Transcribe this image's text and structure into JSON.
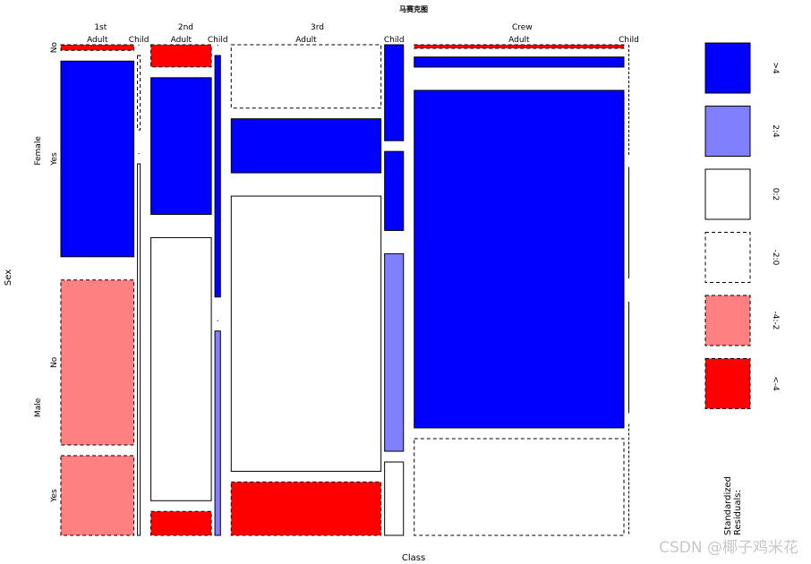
{
  "chart_data": {
    "type": "mosaic",
    "title": "马赛克图",
    "xlabel": "Class",
    "ylabel": "Sex",
    "col_levels": [
      "1st",
      "2nd",
      "3rd",
      "Crew"
    ],
    "age_levels": [
      "Adult",
      "Child"
    ],
    "sex_levels": [
      "Female",
      "Male"
    ],
    "survived_levels": [
      "No",
      "Yes"
    ],
    "cells": [
      {
        "class": "1st",
        "age": "Adult",
        "sex": "Female",
        "survived": "No",
        "count": 4,
        "fill": "#ff0000",
        "dash": true
      },
      {
        "class": "1st",
        "age": "Adult",
        "sex": "Female",
        "survived": "Yes",
        "count": 140,
        "fill": "#0000ff",
        "dash": false
      },
      {
        "class": "1st",
        "age": "Adult",
        "sex": "Male",
        "survived": "No",
        "count": 118,
        "fill": "#ff8080",
        "dash": true
      },
      {
        "class": "1st",
        "age": "Adult",
        "sex": "Male",
        "survived": "Yes",
        "count": 57,
        "fill": "#ff8080",
        "dash": true
      },
      {
        "class": "1st",
        "age": "Child",
        "sex": "Female",
        "survived": "No",
        "count": 0,
        "fill": "#ffffff",
        "dash": true
      },
      {
        "class": "1st",
        "age": "Child",
        "sex": "Female",
        "survived": "Yes",
        "count": 1,
        "fill": "#ffffff",
        "dash": true
      },
      {
        "class": "1st",
        "age": "Child",
        "sex": "Male",
        "survived": "No",
        "count": 0,
        "fill": "#ffffff",
        "dash": false
      },
      {
        "class": "1st",
        "age": "Child",
        "sex": "Male",
        "survived": "Yes",
        "count": 5,
        "fill": "#ffffff",
        "dash": false
      },
      {
        "class": "2nd",
        "age": "Adult",
        "sex": "Female",
        "survived": "No",
        "count": 13,
        "fill": "#ff0000",
        "dash": true
      },
      {
        "class": "2nd",
        "age": "Adult",
        "sex": "Female",
        "survived": "Yes",
        "count": 80,
        "fill": "#0000ff",
        "dash": false
      },
      {
        "class": "2nd",
        "age": "Adult",
        "sex": "Male",
        "survived": "No",
        "count": 154,
        "fill": "#ffffff",
        "dash": false
      },
      {
        "class": "2nd",
        "age": "Adult",
        "sex": "Male",
        "survived": "Yes",
        "count": 14,
        "fill": "#ff0000",
        "dash": true
      },
      {
        "class": "2nd",
        "age": "Child",
        "sex": "Female",
        "survived": "No",
        "count": 0,
        "fill": "#ffffff",
        "dash": true
      },
      {
        "class": "2nd",
        "age": "Child",
        "sex": "Female",
        "survived": "Yes",
        "count": 13,
        "fill": "#0000ff",
        "dash": false
      },
      {
        "class": "2nd",
        "age": "Child",
        "sex": "Male",
        "survived": "No",
        "count": 0,
        "fill": "#ffffff",
        "dash": false
      },
      {
        "class": "2nd",
        "age": "Child",
        "sex": "Male",
        "survived": "Yes",
        "count": 11,
        "fill": "#8080ff",
        "dash": false
      },
      {
        "class": "3rd",
        "age": "Adult",
        "sex": "Female",
        "survived": "No",
        "count": 89,
        "fill": "#ffffff",
        "dash": true
      },
      {
        "class": "3rd",
        "age": "Adult",
        "sex": "Female",
        "survived": "Yes",
        "count": 76,
        "fill": "#0000ff",
        "dash": false
      },
      {
        "class": "3rd",
        "age": "Adult",
        "sex": "Male",
        "survived": "No",
        "count": 387,
        "fill": "#ffffff",
        "dash": false
      },
      {
        "class": "3rd",
        "age": "Adult",
        "sex": "Male",
        "survived": "Yes",
        "count": 75,
        "fill": "#ff0000",
        "dash": true
      },
      {
        "class": "3rd",
        "age": "Child",
        "sex": "Female",
        "survived": "No",
        "count": 17,
        "fill": "#0000ff",
        "dash": false
      },
      {
        "class": "3rd",
        "age": "Child",
        "sex": "Female",
        "survived": "Yes",
        "count": 14,
        "fill": "#0000ff",
        "dash": false
      },
      {
        "class": "3rd",
        "age": "Child",
        "sex": "Male",
        "survived": "No",
        "count": 35,
        "fill": "#8080ff",
        "dash": false
      },
      {
        "class": "3rd",
        "age": "Child",
        "sex": "Male",
        "survived": "Yes",
        "count": 13,
        "fill": "#ffffff",
        "dash": false
      },
      {
        "class": "Crew",
        "age": "Adult",
        "sex": "Female",
        "survived": "No",
        "count": 3,
        "fill": "#ff0000",
        "dash": true
      },
      {
        "class": "Crew",
        "age": "Adult",
        "sex": "Female",
        "survived": "Yes",
        "count": 20,
        "fill": "#0000ff",
        "dash": false
      },
      {
        "class": "Crew",
        "age": "Adult",
        "sex": "Male",
        "survived": "No",
        "count": 670,
        "fill": "#0000ff",
        "dash": false
      },
      {
        "class": "Crew",
        "age": "Adult",
        "sex": "Male",
        "survived": "Yes",
        "count": 192,
        "fill": "#ffffff",
        "dash": true
      },
      {
        "class": "Crew",
        "age": "Child",
        "sex": "Female",
        "survived": "No",
        "count": 0,
        "fill": "#ffffff",
        "dash": true
      },
      {
        "class": "Crew",
        "age": "Child",
        "sex": "Female",
        "survived": "Yes",
        "count": 0,
        "fill": "#ffffff",
        "dash": false
      },
      {
        "class": "Crew",
        "age": "Child",
        "sex": "Male",
        "survived": "No",
        "count": 0,
        "fill": "#ffffff",
        "dash": false
      },
      {
        "class": "Crew",
        "age": "Child",
        "sex": "Male",
        "survived": "Yes",
        "count": 0,
        "fill": "#ffffff",
        "dash": true
      }
    ],
    "legend": {
      "title": "Standardized\nResiduals:",
      "placement": "right",
      "entries": [
        {
          "label": ">4",
          "fill": "#0000ff",
          "dash": false
        },
        {
          "label": "2:4",
          "fill": "#8080ff",
          "dash": false
        },
        {
          "label": "0:2",
          "fill": "#ffffff",
          "dash": false
        },
        {
          "label": "-2:0",
          "fill": "#ffffff",
          "dash": true
        },
        {
          "label": "-4:-2",
          "fill": "#ff8080",
          "dash": true
        },
        {
          "label": "<-4",
          "fill": "#ff0000",
          "dash": true
        }
      ]
    }
  },
  "watermark": "CSDN @椰子鸡米花"
}
